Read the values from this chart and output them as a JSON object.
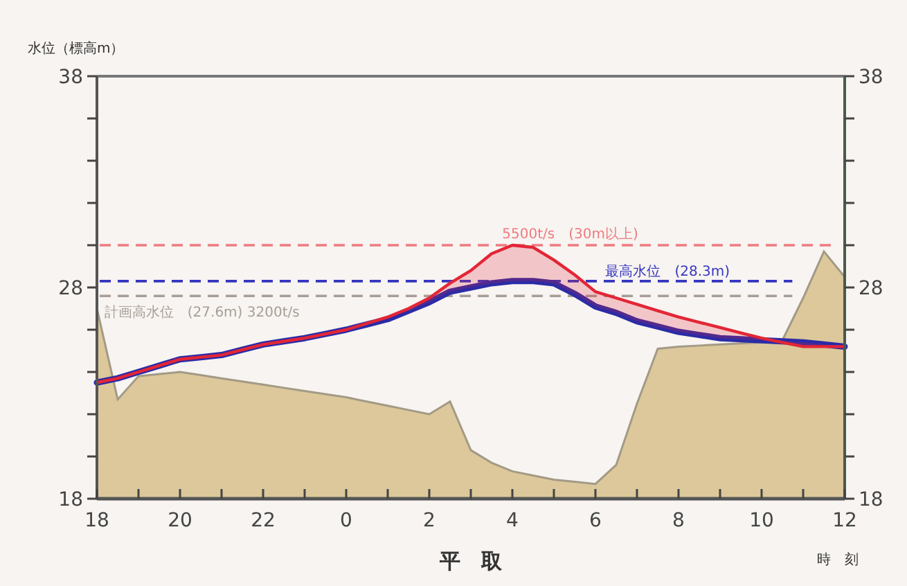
{
  "chart_data": {
    "type": "line",
    "ylabel": "水位（標高m）",
    "xlabel": "平　取",
    "annotations": [
      "時　刻"
    ],
    "categories": [
      "18",
      null,
      null,
      null,
      "20",
      null,
      null,
      null,
      "22",
      null,
      null,
      null,
      "0",
      null,
      null,
      null,
      "2",
      null,
      null,
      null,
      "4",
      null,
      null,
      null,
      "6",
      null,
      null,
      null,
      "8",
      null,
      null,
      null,
      "10",
      null,
      null,
      null,
      "12"
    ],
    "series": [
      {
        "type": "area",
        "color": "#dcc89a",
        "values": [
          27,
          22.7,
          23.8,
          23.9,
          24,
          23.85,
          23.7,
          23.55,
          23.4,
          23.25,
          23.1,
          22.95,
          22.8,
          22.6,
          22.4,
          22.2,
          22,
          22.6,
          20.3,
          19.7,
          19.3,
          19.1,
          18.9,
          18.8,
          18.7,
          19.6,
          22.5,
          25.1,
          25.2,
          25.25,
          25.3,
          25.35,
          25.4,
          25.5,
          27.5,
          29.7,
          28.5
        ]
      },
      {
        "color": "#2b2ba6",
        "values": [
          23.5,
          23.7,
          24,
          24.3,
          24.6,
          24.7,
          24.8,
          25.05,
          25.3,
          25.45,
          25.6,
          25.8,
          26,
          26.25,
          26.5,
          26.9,
          27.3,
          27.8,
          28,
          28.2,
          28.3,
          28.3,
          28.2,
          27.7,
          27.1,
          26.8,
          26.4,
          26.15,
          25.9,
          25.75,
          25.6,
          25.55,
          25.5,
          25.45,
          25.4,
          25.3,
          25.2
        ]
      },
      {
        "color": "#e32636",
        "values": [
          23.5,
          23.7,
          24,
          24.3,
          24.6,
          24.7,
          24.8,
          25.05,
          25.3,
          25.45,
          25.6,
          25.8,
          26,
          26.3,
          26.6,
          27,
          27.5,
          28.2,
          28.8,
          29.6,
          30,
          29.9,
          29.3,
          28.6,
          27.8,
          27.5,
          27.2,
          26.9,
          26.6,
          26.35,
          26.1,
          25.85,
          25.6,
          25.4,
          25.2,
          25.2,
          25.2
        ],
        "lower": [
          23.5,
          23.7,
          24,
          24.3,
          24.6,
          24.7,
          24.8,
          25.05,
          25.3,
          25.45,
          25.6,
          25.8,
          26,
          26.25,
          26.5,
          26.9,
          27.3,
          27.8,
          28,
          28.2,
          28.3,
          28.3,
          28.2,
          27.7,
          27.1,
          26.8,
          26.4,
          26.15,
          25.9,
          25.75,
          25.6,
          25.55,
          25.5,
          25.45,
          25.4,
          25.3,
          25.2
        ],
        "upper": [
          23.5,
          23.7,
          24,
          24.3,
          24.6,
          24.7,
          24.8,
          25.05,
          25.3,
          25.45,
          25.6,
          25.8,
          26,
          26.3,
          26.6,
          27,
          27.5,
          28.2,
          28.8,
          29.6,
          30,
          29.9,
          29.3,
          28.6,
          27.8,
          27.5,
          27.2,
          26.9,
          26.6,
          26.35,
          26.1,
          25.85,
          25.6,
          25.4,
          25.2,
          25.2,
          25.2
        ]
      }
    ],
    "ref_lines": [
      {
        "axis": "y",
        "value": 30,
        "label": "5500t/s　(30m以上)",
        "color": "#f07a80",
        "line_style": "dashed"
      },
      {
        "axis": "y",
        "value": 28.3,
        "label": "最高水位　(28.3m)",
        "color": "#3535c0",
        "line_style": "dashed"
      },
      {
        "axis": "y",
        "value": 27.6,
        "label": "計画高水位　(27.6m) 3200t/s",
        "color": "#a89e96",
        "line_style": "dashed"
      }
    ],
    "ylim": [
      18,
      38
    ],
    "yticks": [
      18,
      {
        "value": 20,
        "label": null
      },
      {
        "value": 22,
        "label": null
      },
      {
        "value": 24,
        "label": null
      },
      {
        "value": 26,
        "label": null
      },
      28,
      {
        "value": 30,
        "label": null
      },
      {
        "value": 32,
        "label": null
      },
      {
        "value": 34,
        "label": null
      },
      {
        "value": 36,
        "label": null
      },
      38
    ],
    "y2lim": [
      18,
      38
    ],
    "y2ticks": [
      18,
      {
        "value": 20,
        "label": null
      },
      {
        "value": 22,
        "label": null
      },
      {
        "value": 24,
        "label": null
      },
      {
        "value": 26,
        "label": null
      },
      28,
      {
        "value": 30,
        "label": null
      },
      {
        "value": 32,
        "label": null
      },
      {
        "value": 34,
        "label": null
      },
      {
        "value": 36,
        "label": null
      },
      38
    ],
    "grid": false
  }
}
